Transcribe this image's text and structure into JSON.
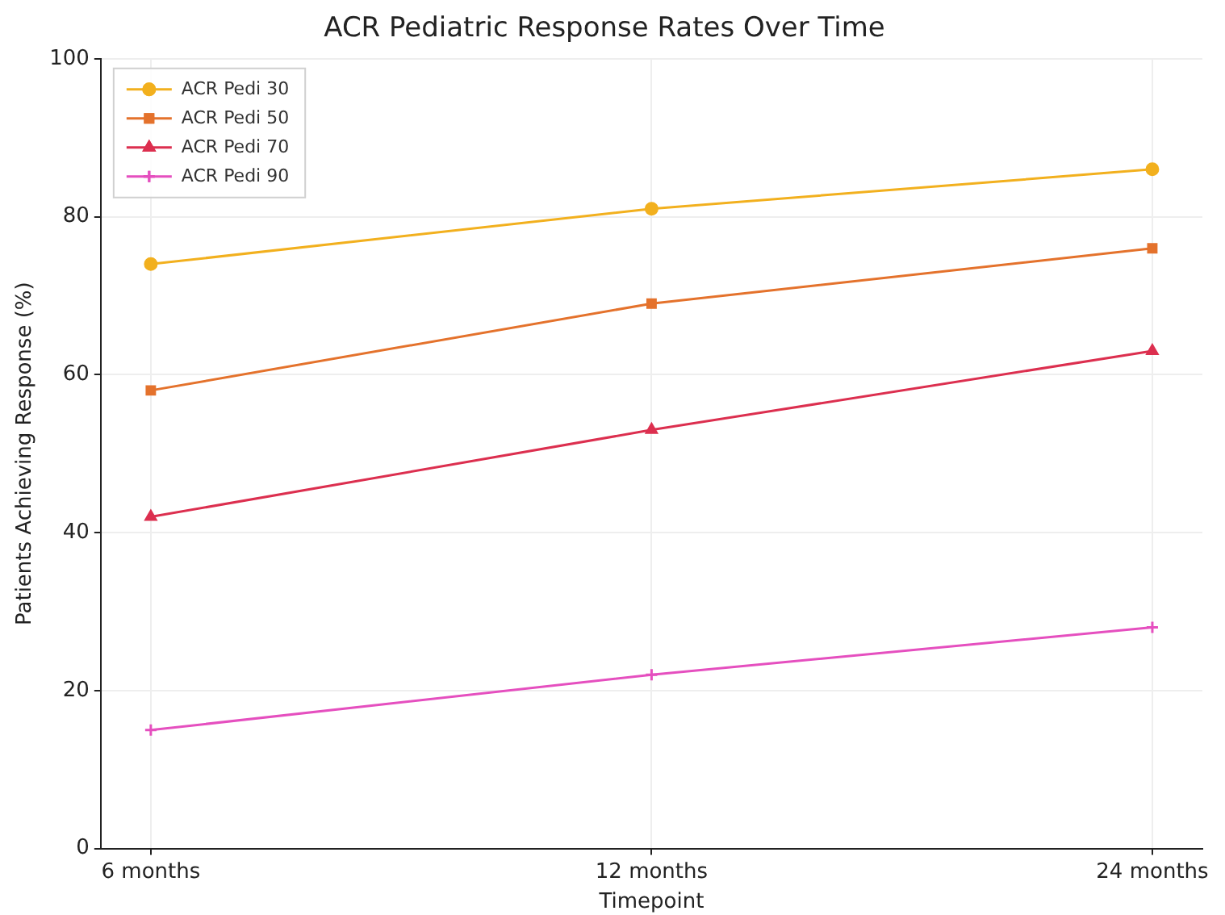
{
  "chart_data": {
    "type": "line",
    "title": "ACR Pediatric Response Rates Over Time",
    "xlabel": "Timepoint",
    "ylabel": "Patients Achieving Response (%)",
    "categories": [
      "6 months",
      "12 months",
      "24 months"
    ],
    "series": [
      {
        "name": "ACR Pedi 30",
        "color": "#f2b01e",
        "marker": "circle",
        "values": [
          74,
          81,
          86
        ]
      },
      {
        "name": "ACR Pedi 50",
        "color": "#e4722c",
        "marker": "square",
        "values": [
          58,
          69,
          76
        ]
      },
      {
        "name": "ACR Pedi 70",
        "color": "#dc2f4f",
        "marker": "triangle",
        "values": [
          42,
          53,
          63
        ]
      },
      {
        "name": "ACR Pedi 90",
        "color": "#e54fbf",
        "marker": "cross",
        "values": [
          15,
          22,
          28
        ]
      }
    ],
    "ylim": [
      0,
      100
    ],
    "yticks": [
      0,
      20,
      40,
      60,
      80,
      100
    ],
    "grid": true,
    "legend": "top left",
    "line_style": "solid"
  }
}
